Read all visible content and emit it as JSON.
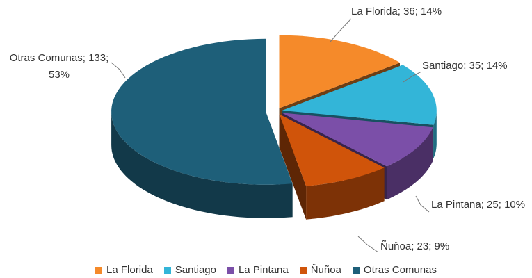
{
  "chart_data": {
    "type": "pie",
    "categories": [
      "La Florida",
      "Santiago",
      "La Pintana",
      "Ñuñoa",
      "Otras Comunas"
    ],
    "values": [
      36,
      35,
      25,
      23,
      133
    ],
    "value_labels": [
      "La Florida; 36; 14%",
      "Santiago; 35; 14%",
      "La Pintana; 25; 10%",
      "Ñuñoa; 23; 9%",
      "Otras Comunas; 133; 53%"
    ],
    "colors": [
      "#f58a2a",
      "#33b5d8",
      "#7b4fa8",
      "#d0540a",
      "#1e5f79"
    ],
    "legend": "bottom"
  }
}
